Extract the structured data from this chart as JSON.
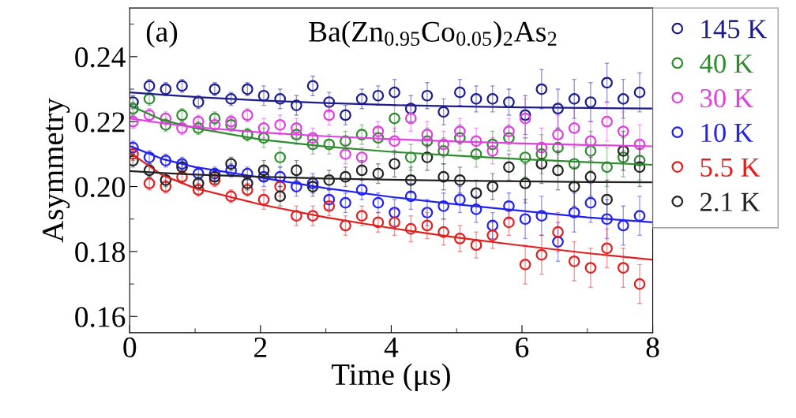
{
  "chart_data": {
    "type": "scatter",
    "title": "Ba(Zn$_{0.95}$Co$_{0.05}$)$_{2}$As$_{2}$",
    "annotations": [
      "(a)"
    ],
    "xlabel": "Time (μs)",
    "ylabel": "Asymmetry",
    "x": [
      0.05,
      0.3,
      0.55,
      0.8,
      1.05,
      1.3,
      1.55,
      1.8,
      2.05,
      2.3,
      2.55,
      2.8,
      3.05,
      3.3,
      3.55,
      3.8,
      4.05,
      4.3,
      4.55,
      4.8,
      5.05,
      5.3,
      5.55,
      5.8,
      6.05,
      6.3,
      6.55,
      6.8,
      7.05,
      7.3,
      7.55,
      7.8
    ],
    "xlim": [
      0,
      8
    ],
    "xticks": [
      0,
      2,
      4,
      6,
      8
    ],
    "ylim": [
      0.155,
      0.255
    ],
    "yticks": [
      {
        "value": 0.16,
        "label": "0.16"
      },
      {
        "value": 0.18,
        "label": "0.18"
      },
      {
        "value": 0.2,
        "label": "0.20"
      },
      {
        "value": 0.22,
        "label": "0.22"
      },
      {
        "value": 0.24,
        "label": "0.24"
      }
    ],
    "marker": "circle",
    "legend": "right",
    "series": [
      {
        "name": "145 K",
        "color": "#1c1c8c",
        "values": [
          0.226,
          0.231,
          0.23,
          0.231,
          0.226,
          0.23,
          0.227,
          0.23,
          0.228,
          0.227,
          0.225,
          0.231,
          0.226,
          0.222,
          0.227,
          0.228,
          0.229,
          0.224,
          0.228,
          0.223,
          0.229,
          0.227,
          0.227,
          0.226,
          0.222,
          0.23,
          0.224,
          0.227,
          0.226,
          0.232,
          0.227,
          0.229
        ],
        "errors": [
          0.002,
          0.002,
          0.002,
          0.002,
          0.002,
          0.002,
          0.002,
          0.002,
          0.003,
          0.003,
          0.003,
          0.003,
          0.003,
          0.003,
          0.003,
          0.003,
          0.004,
          0.004,
          0.004,
          0.004,
          0.004,
          0.004,
          0.004,
          0.004,
          0.006,
          0.006,
          0.006,
          0.006,
          0.006,
          0.006,
          0.006,
          0.006
        ]
      },
      {
        "name": "40 K",
        "color": "#2e8b2e",
        "values": [
          0.224,
          0.227,
          0.219,
          0.222,
          0.218,
          0.221,
          0.219,
          0.216,
          0.215,
          0.209,
          0.216,
          0.213,
          0.213,
          0.214,
          0.216,
          0.215,
          0.221,
          0.209,
          0.214,
          0.211,
          0.215,
          0.21,
          0.213,
          0.215,
          0.209,
          0.21,
          0.212,
          0.207,
          0.211,
          0.206,
          0.209,
          0.208
        ],
        "errors": [
          0.002,
          0.002,
          0.002,
          0.002,
          0.002,
          0.002,
          0.002,
          0.002,
          0.003,
          0.003,
          0.003,
          0.003,
          0.003,
          0.003,
          0.003,
          0.003,
          0.004,
          0.004,
          0.004,
          0.004,
          0.004,
          0.004,
          0.004,
          0.004,
          0.006,
          0.006,
          0.006,
          0.006,
          0.006,
          0.006,
          0.006,
          0.006
        ]
      },
      {
        "name": "30 K",
        "color": "#e040e0",
        "values": [
          0.22,
          0.222,
          0.221,
          0.218,
          0.22,
          0.219,
          0.22,
          0.222,
          0.218,
          0.219,
          0.218,
          0.215,
          0.222,
          0.21,
          0.209,
          0.217,
          0.214,
          0.221,
          0.216,
          0.213,
          0.217,
          0.214,
          0.211,
          0.217,
          0.221,
          0.212,
          0.216,
          0.218,
          0.214,
          0.22,
          0.217,
          0.213
        ],
        "errors": [
          0.002,
          0.002,
          0.002,
          0.002,
          0.002,
          0.002,
          0.002,
          0.002,
          0.003,
          0.003,
          0.003,
          0.003,
          0.003,
          0.003,
          0.003,
          0.003,
          0.004,
          0.004,
          0.004,
          0.004,
          0.004,
          0.004,
          0.004,
          0.004,
          0.006,
          0.006,
          0.006,
          0.006,
          0.006,
          0.006,
          0.006,
          0.006
        ]
      },
      {
        "name": "10 K",
        "color": "#2020f0",
        "values": [
          0.212,
          0.209,
          0.208,
          0.207,
          0.204,
          0.204,
          0.205,
          0.204,
          0.203,
          0.203,
          0.2,
          0.201,
          0.196,
          0.195,
          0.199,
          0.195,
          0.192,
          0.197,
          0.192,
          0.194,
          0.196,
          0.193,
          0.188,
          0.194,
          0.19,
          0.191,
          0.183,
          0.192,
          0.195,
          0.19,
          0.188,
          0.191
        ],
        "errors": [
          0.002,
          0.002,
          0.002,
          0.002,
          0.002,
          0.002,
          0.002,
          0.002,
          0.003,
          0.003,
          0.003,
          0.003,
          0.003,
          0.003,
          0.003,
          0.003,
          0.004,
          0.004,
          0.004,
          0.004,
          0.004,
          0.004,
          0.004,
          0.004,
          0.006,
          0.006,
          0.006,
          0.006,
          0.006,
          0.006,
          0.006,
          0.006
        ]
      },
      {
        "name": "5.5 K",
        "color": "#e02020",
        "values": [
          0.21,
          0.201,
          0.2,
          0.203,
          0.199,
          0.202,
          0.197,
          0.199,
          0.196,
          0.2,
          0.191,
          0.191,
          0.194,
          0.188,
          0.191,
          0.189,
          0.189,
          0.187,
          0.188,
          0.186,
          0.184,
          0.182,
          0.185,
          0.189,
          0.176,
          0.179,
          0.186,
          0.177,
          0.175,
          0.181,
          0.175,
          0.17
        ],
        "errors": [
          0.002,
          0.002,
          0.002,
          0.002,
          0.002,
          0.002,
          0.002,
          0.002,
          0.003,
          0.003,
          0.003,
          0.003,
          0.003,
          0.003,
          0.003,
          0.003,
          0.004,
          0.004,
          0.004,
          0.004,
          0.004,
          0.004,
          0.004,
          0.004,
          0.006,
          0.006,
          0.006,
          0.006,
          0.006,
          0.006,
          0.006,
          0.006
        ]
      },
      {
        "name": "2.1 K",
        "color": "#222222",
        "values": [
          0.208,
          0.205,
          0.202,
          0.206,
          0.201,
          0.203,
          0.207,
          0.201,
          0.205,
          0.197,
          0.205,
          0.2,
          0.202,
          0.203,
          0.205,
          0.204,
          0.207,
          0.202,
          0.209,
          0.203,
          0.202,
          0.198,
          0.2,
          0.206,
          0.201,
          0.207,
          0.205,
          0.2,
          0.203,
          0.196,
          0.211,
          0.206
        ],
        "errors": [
          0.002,
          0.002,
          0.002,
          0.002,
          0.002,
          0.002,
          0.002,
          0.002,
          0.003,
          0.003,
          0.003,
          0.003,
          0.003,
          0.003,
          0.003,
          0.003,
          0.004,
          0.004,
          0.004,
          0.004,
          0.004,
          0.004,
          0.004,
          0.004,
          0.006,
          0.006,
          0.006,
          0.006,
          0.006,
          0.006,
          0.006,
          0.006
        ]
      },
      {
        "type": "line",
        "marker": "none",
        "color": "#1c1c8c",
        "x": [
          0,
          0.5,
          1,
          2,
          3,
          4,
          5,
          6,
          7,
          8
        ],
        "values": [
          0.229,
          0.2283,
          0.2276,
          0.2265,
          0.2257,
          0.2251,
          0.2247,
          0.2244,
          0.2242,
          0.224
        ]
      },
      {
        "type": "line",
        "marker": "none",
        "color": "#2e8b2e",
        "x": [
          0,
          0.5,
          1,
          2,
          3,
          4,
          5,
          6,
          7,
          8
        ],
        "values": [
          0.225,
          0.2205,
          0.218,
          0.2145,
          0.2123,
          0.2107,
          0.2095,
          0.2084,
          0.2075,
          0.2067
        ]
      },
      {
        "type": "line",
        "marker": "none",
        "color": "#e040e0",
        "x": [
          0,
          0.5,
          1,
          2,
          3,
          4,
          5,
          6,
          7,
          8
        ],
        "values": [
          0.221,
          0.2195,
          0.2183,
          0.2167,
          0.2155,
          0.2146,
          0.2139,
          0.2133,
          0.2128,
          0.2124
        ]
      },
      {
        "type": "line",
        "marker": "none",
        "color": "#2020f0",
        "x": [
          0,
          0.5,
          1,
          2,
          3,
          4,
          5,
          6,
          7,
          8
        ],
        "values": [
          0.2125,
          0.2085,
          0.206,
          0.2028,
          0.1995,
          0.1968,
          0.1945,
          0.1925,
          0.1905,
          0.189
        ]
      },
      {
        "type": "line",
        "marker": "none",
        "color": "#e02020",
        "x": [
          0,
          0.5,
          1,
          2,
          3,
          4,
          5,
          6,
          7,
          8
        ],
        "values": [
          0.2105,
          0.2035,
          0.1995,
          0.1945,
          0.1905,
          0.1872,
          0.1843,
          0.1818,
          0.1795,
          0.1775
        ]
      },
      {
        "type": "line",
        "marker": "none",
        "color": "#222222",
        "x": [
          0,
          0.5,
          1,
          2,
          3,
          4,
          5,
          6,
          7,
          8
        ],
        "values": [
          0.2048,
          0.2042,
          0.2037,
          0.203,
          0.2025,
          0.2021,
          0.2018,
          0.2016,
          0.2014,
          0.2013
        ]
      }
    ]
  }
}
